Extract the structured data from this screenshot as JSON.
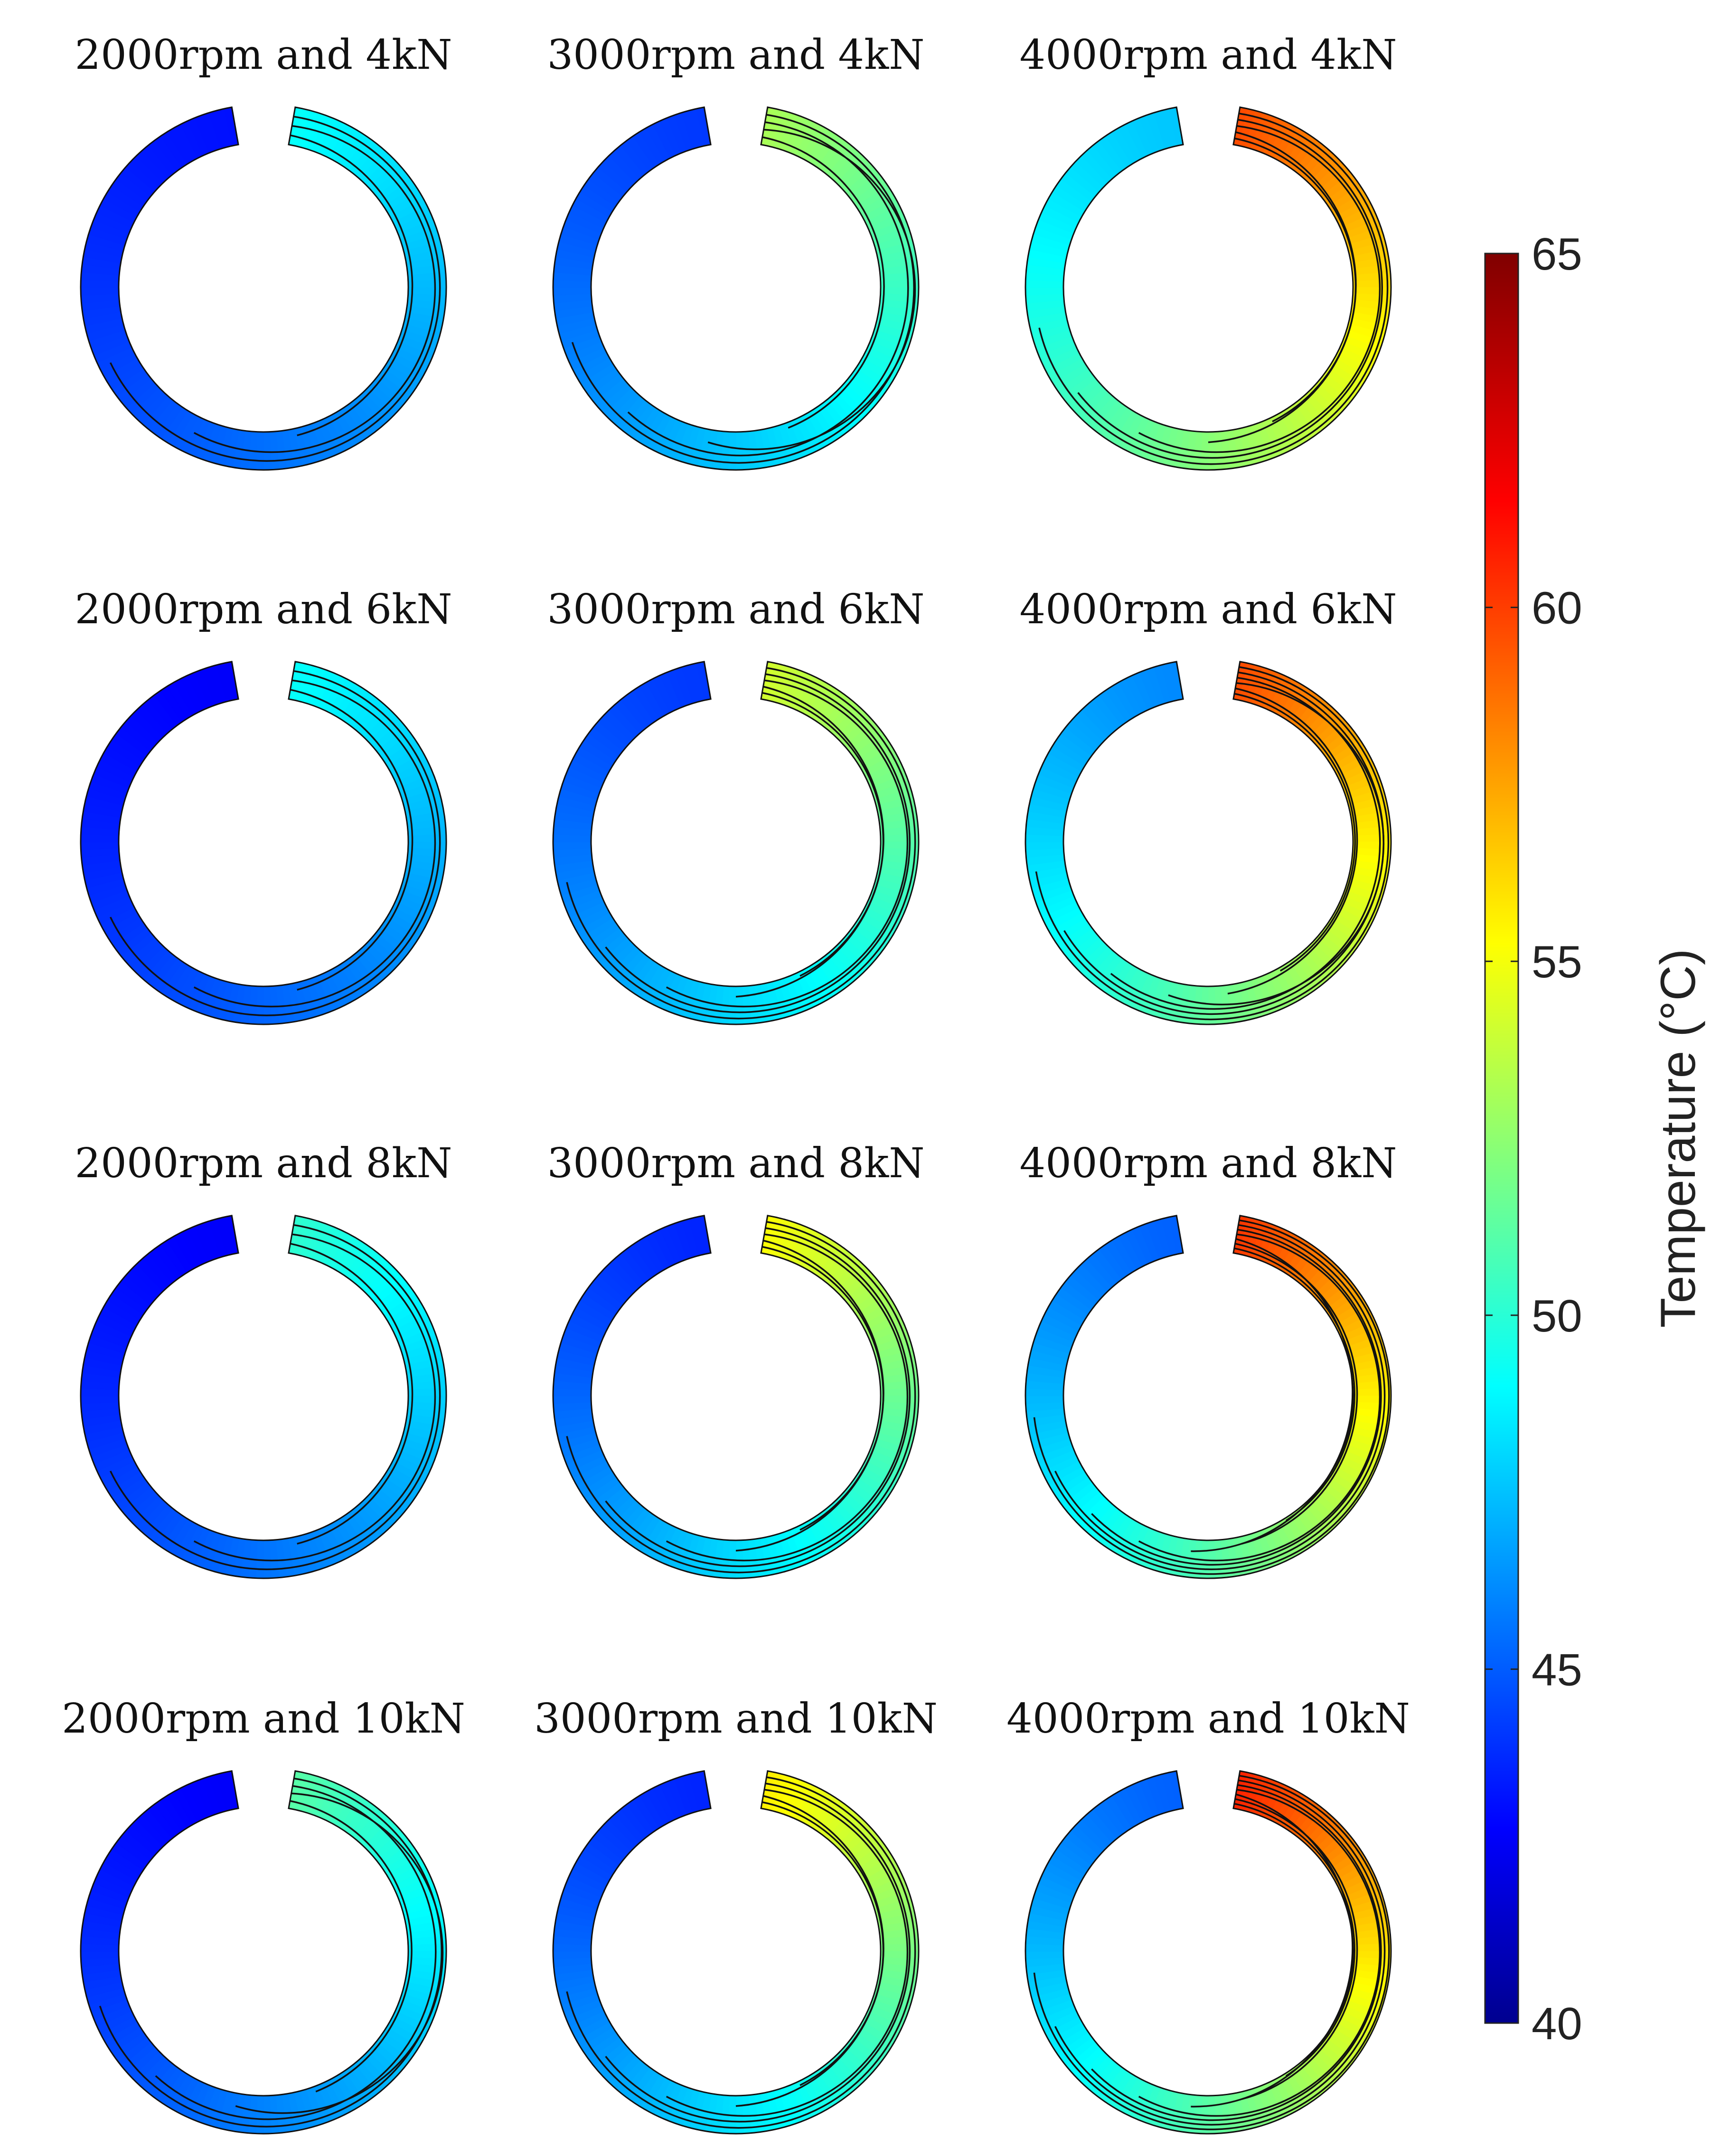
{
  "chart_data": {
    "type": "heatmap",
    "description_units": "Temperature (°C)",
    "grid": {
      "rows": [
        "4kN",
        "6kN",
        "8kN",
        "10kN"
      ],
      "cols": [
        "2000rpm",
        "3000rpm",
        "4000rpm"
      ]
    },
    "panels": [
      {
        "title": "2000rpm and 4kN",
        "speed_rpm": 2000,
        "load_kN": 4,
        "min_temp": 43.5,
        "max_temp": 49.5
      },
      {
        "title": "3000rpm and 4kN",
        "speed_rpm": 3000,
        "load_kN": 4,
        "min_temp": 44.5,
        "max_temp": 53.5
      },
      {
        "title": "4000rpm and 4kN",
        "speed_rpm": 4000,
        "load_kN": 4,
        "min_temp": 48.0,
        "max_temp": 60.0
      },
      {
        "title": "2000rpm and 6kN",
        "speed_rpm": 2000,
        "load_kN": 6,
        "min_temp": 43.0,
        "max_temp": 49.5
      },
      {
        "title": "3000rpm and 6kN",
        "speed_rpm": 3000,
        "load_kN": 6,
        "min_temp": 44.5,
        "max_temp": 54.5
      },
      {
        "title": "4000rpm and 6kN",
        "speed_rpm": 4000,
        "load_kN": 6,
        "min_temp": 46.5,
        "max_temp": 60.0
      },
      {
        "title": "2000rpm and 8kN",
        "speed_rpm": 2000,
        "load_kN": 8,
        "min_temp": 43.0,
        "max_temp": 50.5
      },
      {
        "title": "3000rpm and 8kN",
        "speed_rpm": 3000,
        "load_kN": 8,
        "min_temp": 44.0,
        "max_temp": 55.5
      },
      {
        "title": "4000rpm and 8kN",
        "speed_rpm": 4000,
        "load_kN": 8,
        "min_temp": 45.5,
        "max_temp": 60.5
      },
      {
        "title": "2000rpm and 10kN",
        "speed_rpm": 2000,
        "load_kN": 10,
        "min_temp": 43.0,
        "max_temp": 51.5
      },
      {
        "title": "3000rpm and 10kN",
        "speed_rpm": 3000,
        "load_kN": 10,
        "min_temp": 44.0,
        "max_temp": 56.0
      },
      {
        "title": "4000rpm and 10kN",
        "speed_rpm": 4000,
        "load_kN": 10,
        "min_temp": 45.5,
        "max_temp": 61.0
      }
    ],
    "colorbar": {
      "label": "Temperature (°C)",
      "range": [
        40,
        65
      ],
      "ticks": [
        40,
        45,
        50,
        55,
        60,
        65
      ],
      "tick_labels": [
        "40",
        "45",
        "50",
        "55",
        "60",
        "65"
      ],
      "colormap": "jet"
    }
  }
}
